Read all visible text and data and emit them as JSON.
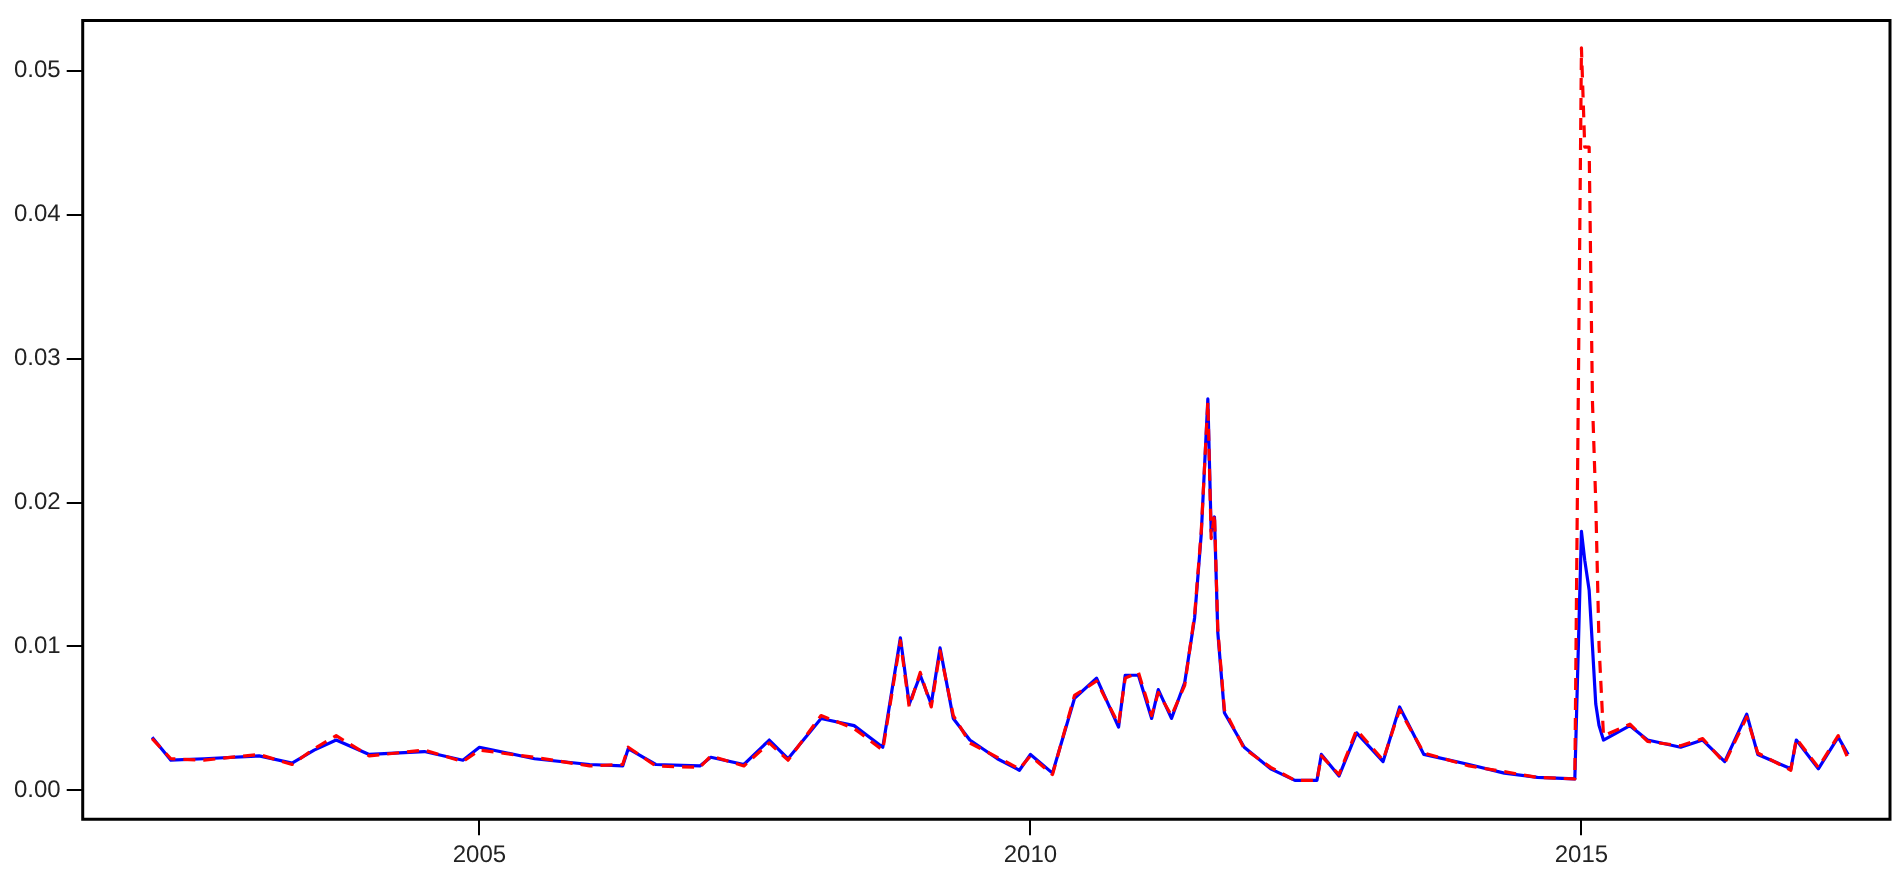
{
  "chart_data": {
    "type": "line",
    "xlim": [
      2001.4,
      2017.8
    ],
    "xticks": [
      2005,
      2010,
      2015
    ],
    "ylim": [
      -0.002,
      0.0535
    ],
    "yticks": [
      {
        "value": 0,
        "label": "0.00"
      },
      0.01,
      0.02,
      0.03,
      0.04,
      0.05
    ],
    "x": [
      2002.03,
      2002.2,
      2002.5,
      2003.0,
      2003.3,
      2003.5,
      2003.7,
      2004.0,
      2004.5,
      2004.85,
      2005.0,
      2005.5,
      2006.0,
      2006.3,
      2006.35,
      2006.6,
      2007.0,
      2007.1,
      2007.4,
      2007.63,
      2007.8,
      2008.1,
      2008.4,
      2008.66,
      2008.82,
      2008.9,
      2009.0,
      2009.1,
      2009.18,
      2009.3,
      2009.45,
      2009.7,
      2009.9,
      2010.0,
      2010.2,
      2010.4,
      2010.6,
      2010.8,
      2010.86,
      2010.98,
      2011.1,
      2011.16,
      2011.28,
      2011.4,
      2011.49,
      2011.55,
      2011.61,
      2011.64,
      2011.67,
      2011.7,
      2011.76,
      2011.94,
      2012.18,
      2012.4,
      2012.6,
      2012.64,
      2012.8,
      2012.96,
      2013.2,
      2013.35,
      2013.57,
      2013.98,
      2014.3,
      2014.6,
      2014.94,
      2015.0,
      2015.03,
      2015.07,
      2015.1,
      2015.13,
      2015.16,
      2015.2,
      2015.44,
      2015.6,
      2015.9,
      2016.1,
      2016.3,
      2016.5,
      2016.6,
      2016.9,
      2016.95,
      2017.15,
      2017.33,
      2017.42
    ],
    "grid": false,
    "marker": "none",
    "series": [
      {
        "color": "#0000ff",
        "line_style": "solid",
        "values": [
          0.0037,
          0.0021,
          0.0022,
          0.0024,
          0.0019,
          0.0028,
          0.0035,
          0.0025,
          0.0027,
          0.0021,
          0.003,
          0.0022,
          0.0018,
          0.0017,
          0.0029,
          0.0018,
          0.0017,
          0.0023,
          0.0018,
          0.0035,
          0.0022,
          0.005,
          0.0045,
          0.003,
          0.0106,
          0.006,
          0.008,
          0.006,
          0.0099,
          0.005,
          0.0035,
          0.0022,
          0.0014,
          0.0025,
          0.0012,
          0.0064,
          0.0078,
          0.0044,
          0.008,
          0.008,
          0.005,
          0.007,
          0.005,
          0.0075,
          0.012,
          0.0178,
          0.0272,
          0.018,
          0.019,
          0.011,
          0.0054,
          0.003,
          0.0015,
          0.0007,
          0.0007,
          0.0025,
          0.001,
          0.004,
          0.002,
          0.0058,
          0.0025,
          0.0018,
          0.0012,
          0.0009,
          0.0008,
          0.018,
          0.016,
          0.0139,
          0.01,
          0.006,
          0.0045,
          0.0035,
          0.0045,
          0.0035,
          0.003,
          0.0035,
          0.002,
          0.0053,
          0.0025,
          0.0015,
          0.0035,
          0.0015,
          0.0037,
          0.0025
        ]
      },
      {
        "color": "#ff0000",
        "line_style": "dashed",
        "values": [
          0.0036,
          0.0022,
          0.0021,
          0.0025,
          0.0018,
          0.0029,
          0.0038,
          0.0024,
          0.0028,
          0.002,
          0.0028,
          0.0023,
          0.0017,
          0.0018,
          0.003,
          0.0017,
          0.0016,
          0.0024,
          0.0017,
          0.0033,
          0.0021,
          0.0052,
          0.0043,
          0.0028,
          0.0104,
          0.0058,
          0.0082,
          0.0058,
          0.0097,
          0.0052,
          0.0033,
          0.0023,
          0.0015,
          0.0024,
          0.0011,
          0.0066,
          0.0076,
          0.0046,
          0.0078,
          0.0082,
          0.0052,
          0.0068,
          0.0052,
          0.0073,
          0.0122,
          0.018,
          0.027,
          0.0175,
          0.0192,
          0.0112,
          0.0056,
          0.0029,
          0.0016,
          0.0007,
          0.0007,
          0.0024,
          0.0011,
          0.0042,
          0.0021,
          0.0056,
          0.0026,
          0.0017,
          0.0013,
          0.0009,
          0.0008,
          0.0516,
          0.0447,
          0.0447,
          0.027,
          0.02,
          0.01,
          0.0038,
          0.0046,
          0.0034,
          0.0031,
          0.0036,
          0.0019,
          0.0051,
          0.0026,
          0.0014,
          0.0036,
          0.0016,
          0.0038,
          0.0022
        ]
      }
    ]
  }
}
